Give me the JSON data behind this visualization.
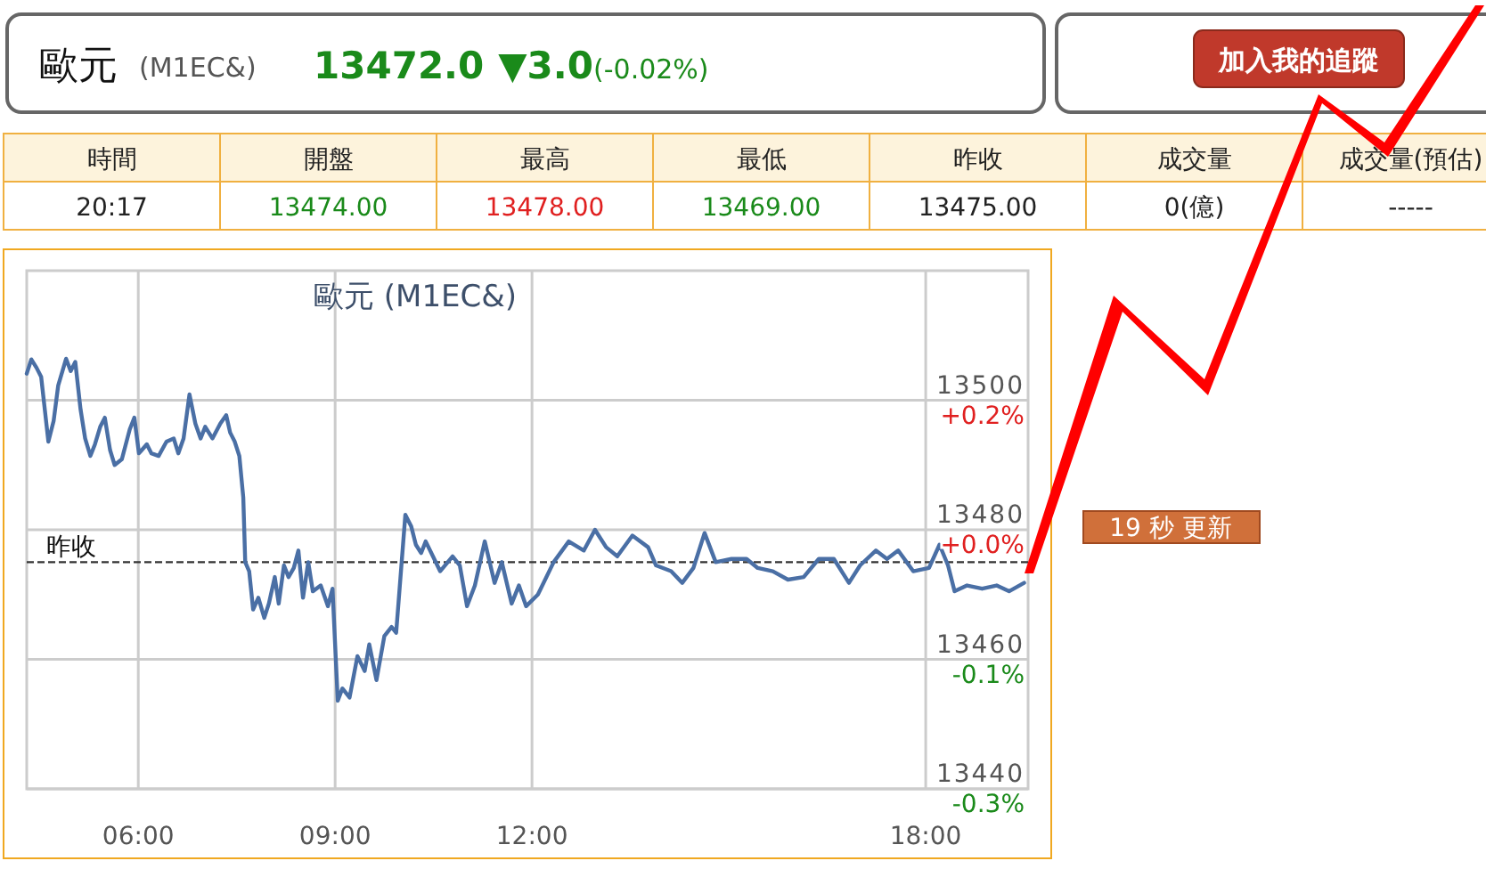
{
  "chart_data": [
    {
      "type": "other",
      "title": "歐元",
      "subtitle": "(M1EC&)",
      "annotations": [
        "13472.0",
        "▼3.0",
        "(-0.02%)",
        "加入我的追蹤"
      ]
    },
    {
      "type": "other",
      "categories": [
        "時間",
        "開盤",
        "最高",
        "最低",
        "昨收",
        "成交量",
        "成交量(預估)"
      ],
      "annotations": [
        "20:17",
        "13474.00",
        "13478.00",
        "13469.00",
        "13475.00",
        "0(億)",
        "-----"
      ]
    },
    {
      "type": "line",
      "title": "歐元 (M1EC&)",
      "annotations": [
        "19 秒 更新"
      ],
      "grid": true,
      "xlim": [
        4.3,
        19.56
      ],
      "xticks": [
        {
          "value": 6,
          "label": "06:00"
        },
        {
          "value": 9,
          "label": "09:00"
        },
        {
          "value": 12,
          "label": "12:00"
        },
        {
          "value": 18,
          "label": "18:00"
        }
      ],
      "ylim": [
        13440,
        13520
      ],
      "yticks": [
        13440,
        13460,
        13480,
        13500
      ],
      "y2lim": [
        -0.2597,
        0.334
      ],
      "y2ticks": [
        {
          "value": -0.2597,
          "label": "-0.3%"
        },
        {
          "value": -0.1113,
          "label": "-0.1%"
        },
        {
          "value": 0.0371,
          "label": "+0.0%"
        },
        {
          "value": 0.1855,
          "label": "+0.2%"
        }
      ],
      "ref_lines": [
        {
          "axis": "y",
          "value": 13475,
          "label": "昨收",
          "color": "#333333",
          "line_style": "dashed"
        }
      ],
      "series": [
        {
          "color": "#4a6fa5",
          "x": [
            4.3,
            4.37,
            4.45,
            4.52,
            4.63,
            4.71,
            4.78,
            4.9,
            4.97,
            5.04,
            5.12,
            5.19,
            5.27,
            5.34,
            5.42,
            5.49,
            5.57,
            5.64,
            5.75,
            5.87,
            5.94,
            6.01,
            6.13,
            6.2,
            6.31,
            6.43,
            6.54,
            6.61,
            6.69,
            6.78,
            6.87,
            6.95,
            7.02,
            7.13,
            7.25,
            7.34,
            7.4,
            7.47,
            7.54,
            7.6,
            7.63,
            7.69,
            7.75,
            7.83,
            7.92,
            7.99,
            8.08,
            8.14,
            8.22,
            8.29,
            8.37,
            8.44,
            8.51,
            8.59,
            8.66,
            8.78,
            8.89,
            8.96,
            9.04,
            9.11,
            9.22,
            9.34,
            9.45,
            9.52,
            9.63,
            9.75,
            9.86,
            9.93,
            10.07,
            10.16,
            10.23,
            10.31,
            10.38,
            10.49,
            10.6,
            10.79,
            10.9,
            11.01,
            11.13,
            11.28,
            11.43,
            11.54,
            11.69,
            11.8,
            11.91,
            12.09,
            12.33,
            12.56,
            12.79,
            12.96,
            13.13,
            13.3,
            13.53,
            13.77,
            13.89,
            14.12,
            14.29,
            14.46,
            14.63,
            14.8,
            15.04,
            15.27,
            15.44,
            15.67,
            15.9,
            16.14,
            16.37,
            16.6,
            16.83,
            17.0,
            17.24,
            17.41,
            17.58,
            17.81,
            18.05,
            18.21,
            18.34,
            18.44,
            18.63,
            18.86,
            19.08,
            19.27,
            19.5
          ],
          "values": [
            13504.1,
            13506.3,
            13505.0,
            13503.6,
            13493.6,
            13496.8,
            13502.3,
            13506.4,
            13504.5,
            13505.9,
            13498.6,
            13494.1,
            13491.4,
            13493.2,
            13495.9,
            13497.3,
            13492.3,
            13490.0,
            13490.9,
            13495.5,
            13497.3,
            13491.8,
            13493.2,
            13491.8,
            13491.4,
            13493.6,
            13494.1,
            13491.8,
            13494.1,
            13500.9,
            13496.4,
            13494.1,
            13495.9,
            13494.1,
            13496.4,
            13497.7,
            13495.0,
            13493.6,
            13491.4,
            13485.0,
            13475.0,
            13473.6,
            13467.7,
            13469.5,
            13466.4,
            13468.6,
            13472.7,
            13468.6,
            13474.5,
            13472.7,
            13474.1,
            13476.8,
            13469.5,
            13475.0,
            13470.5,
            13471.4,
            13468.2,
            13470.9,
            13453.6,
            13455.5,
            13454.1,
            13460.5,
            13458.2,
            13462.3,
            13456.8,
            13463.6,
            13465.0,
            13464.1,
            13482.3,
            13480.5,
            13477.7,
            13476.4,
            13478.2,
            13475.9,
            13473.6,
            13475.9,
            13474.5,
            13468.2,
            13471.4,
            13478.2,
            13471.8,
            13475.0,
            13468.6,
            13471.4,
            13468.2,
            13470.0,
            13475.0,
            13478.2,
            13476.8,
            13480.0,
            13477.3,
            13475.9,
            13479.1,
            13477.3,
            13474.5,
            13473.6,
            13471.8,
            13474.1,
            13479.5,
            13475.0,
            13475.5,
            13475.5,
            13474.1,
            13473.6,
            13472.3,
            13472.7,
            13475.5,
            13475.5,
            13471.8,
            13474.5,
            13476.8,
            13475.5,
            13476.8,
            13473.6,
            13474.1,
            13477.7,
            13474.5,
            13470.5,
            13471.4,
            13470.9,
            13471.4,
            13470.5,
            13471.8
          ]
        }
      ]
    }
  ]
}
